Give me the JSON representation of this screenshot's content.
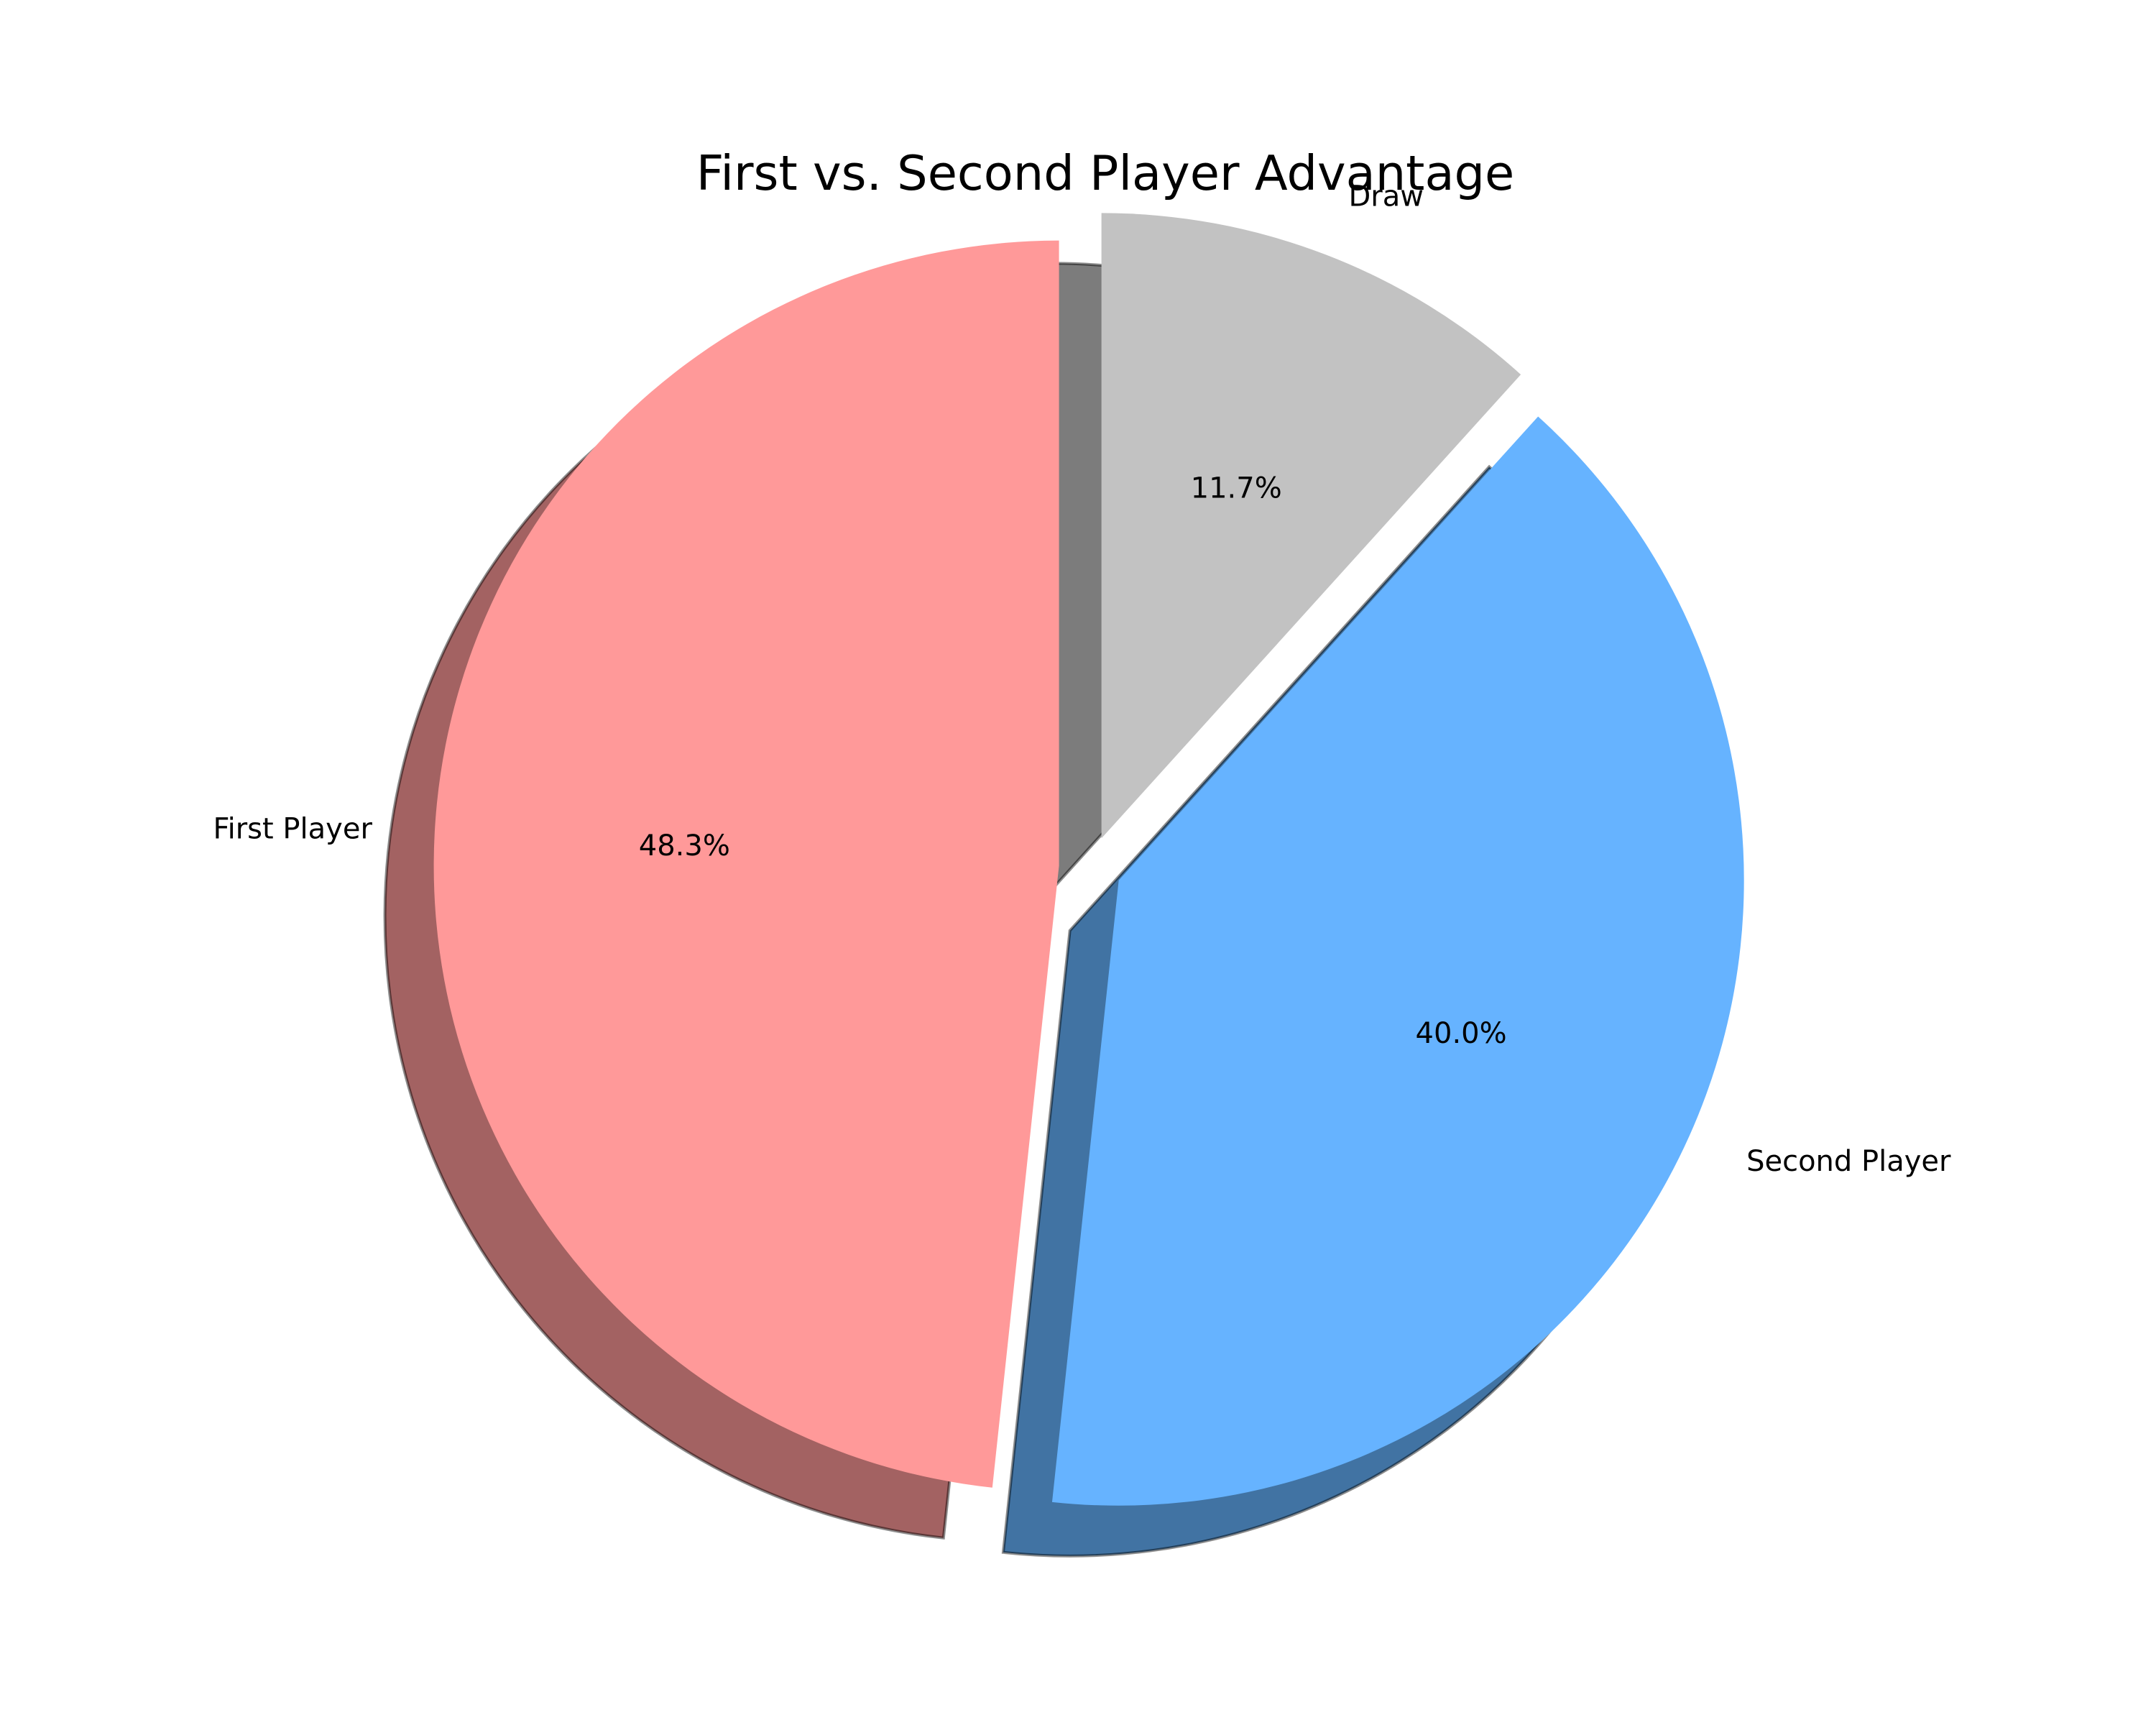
{
  "chart_data": {
    "type": "pie",
    "title": "First vs. Second Player Advantage",
    "slices": [
      {
        "label": "First Player",
        "value": 48.3,
        "pct_label": "48.3%",
        "color": "#ff9999",
        "exploded": true
      },
      {
        "label": "Second Player",
        "value": 40.0,
        "pct_label": "40.0%",
        "color": "#66b3ff",
        "exploded": true
      },
      {
        "label": "Draw",
        "value": 11.7,
        "pct_label": "11.7%",
        "color": "#c2c2c2",
        "exploded": true
      }
    ],
    "start_angle": "top",
    "direction": "counterclockwise",
    "shadow": true,
    "legend": false
  }
}
